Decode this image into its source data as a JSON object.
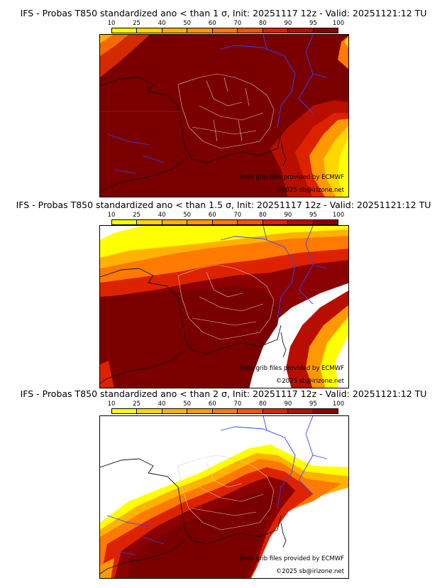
{
  "colorbar": {
    "ticks": [
      "10",
      "25",
      "40",
      "50",
      "60",
      "70",
      "80",
      "90",
      "95",
      "100"
    ],
    "colors": [
      "#ffff00",
      "#ffd700",
      "#ffb300",
      "#ff9900",
      "#ff7a00",
      "#f45500",
      "#dd2200",
      "#b80e00",
      "#8b0000"
    ]
  },
  "panels": [
    {
      "title": "IFS - Probas T850  standardized ano < than 1 σ, Init: 20251117 12z - Valid: 20251121:12 TU",
      "source": "from grib files provided by ECMWF",
      "copyright": "©2025 sb@irizone.net"
    },
    {
      "title": "IFS - Probas T850  standardized ano < than 1.5 σ, Init: 20251117 12z - Valid: 20251121:12 TU",
      "source": "from grib files provided by ECMWF",
      "copyright": "©2025 sb@irizone.net"
    },
    {
      "title": "IFS - Probas T850  standardized ano < than 2 σ, Init: 20251117 12z - Valid: 20251121:12 TU",
      "source": "from grib files provided by ECMWF",
      "copyright": "©2025 sb@irizone.net"
    }
  ]
}
